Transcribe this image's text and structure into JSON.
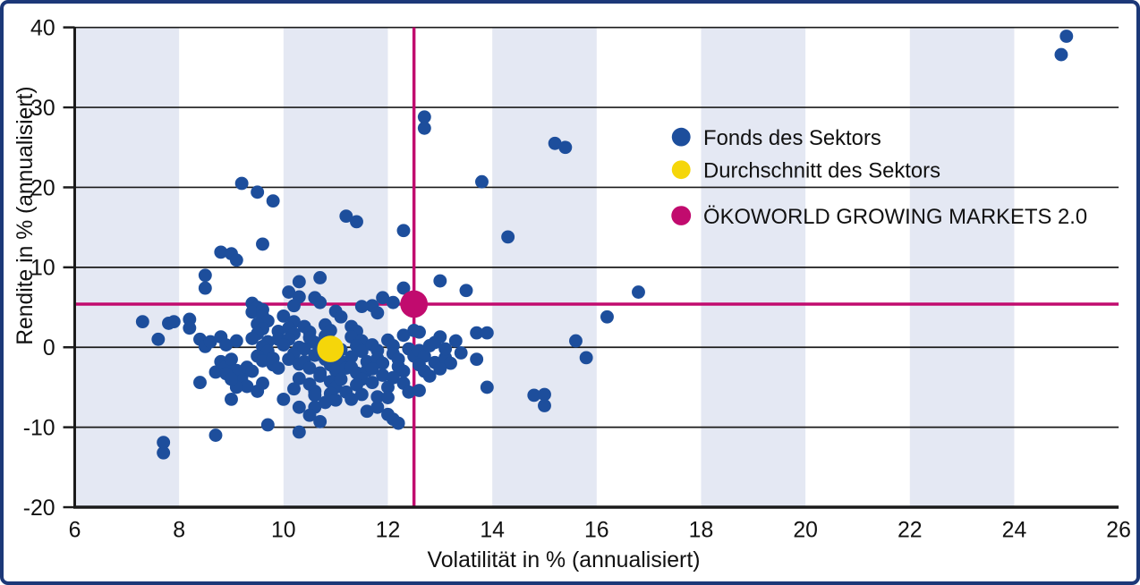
{
  "frame": {
    "border_color": "#1c3878",
    "background_color": "#ffffff"
  },
  "chart_data": {
    "type": "scatter",
    "xlabel": "Volatilität in % (annualisiert)",
    "ylabel": "Rendite in % (annualisiert)",
    "xlim": [
      6,
      26
    ],
    "ylim": [
      -20,
      40
    ],
    "xticks": [
      6,
      8,
      10,
      12,
      14,
      16,
      18,
      20,
      22,
      24,
      26
    ],
    "yticks": [
      -20,
      -10,
      0,
      10,
      20,
      30,
      40
    ],
    "grid": "horizontal",
    "gridline_color": "#1a1a1a",
    "background_bands": {
      "color": "#e4e8f3",
      "x_ranges": [
        [
          6,
          8
        ],
        [
          10,
          12
        ],
        [
          14,
          16
        ],
        [
          18,
          20
        ],
        [
          22,
          24
        ],
        [
          26,
          26.2
        ]
      ]
    },
    "crosshair": {
      "x": 12.5,
      "y": 5.4,
      "color": "#c10b6e"
    },
    "legend": {
      "position": "top-right"
    },
    "series": [
      {
        "name": "Fonds des Sektors",
        "color": "#1d4e9c",
        "marker_radius": 7.5,
        "points": [
          [
            25.0,
            38.9
          ],
          [
            24.9,
            36.6
          ],
          [
            12.7,
            28.8
          ],
          [
            12.7,
            27.4
          ],
          [
            15.2,
            25.5
          ],
          [
            15.4,
            25.0
          ],
          [
            13.8,
            20.7
          ],
          [
            9.2,
            20.5
          ],
          [
            9.5,
            19.4
          ],
          [
            9.8,
            18.3
          ],
          [
            11.2,
            16.4
          ],
          [
            11.4,
            15.7
          ],
          [
            12.3,
            14.6
          ],
          [
            14.3,
            13.8
          ],
          [
            9.6,
            12.9
          ],
          [
            8.8,
            11.9
          ],
          [
            9.0,
            11.7
          ],
          [
            9.1,
            10.9
          ],
          [
            13.0,
            8.3
          ],
          [
            12.3,
            7.4
          ],
          [
            8.5,
            9.0
          ],
          [
            8.5,
            7.4
          ],
          [
            13.5,
            7.1
          ],
          [
            16.8,
            6.9
          ],
          [
            10.3,
            8.2
          ],
          [
            10.7,
            8.7
          ],
          [
            10.1,
            6.9
          ],
          [
            10.3,
            6.3
          ],
          [
            10.6,
            6.2
          ],
          [
            10.7,
            5.6
          ],
          [
            11.9,
            6.2
          ],
          [
            11.7,
            5.2
          ],
          [
            11.5,
            5.1
          ],
          [
            10.2,
            5.2
          ],
          [
            11.8,
            4.3
          ],
          [
            12.1,
            5.6
          ],
          [
            16.2,
            3.8
          ],
          [
            7.3,
            3.2
          ],
          [
            7.8,
            3.0
          ],
          [
            7.9,
            3.2
          ],
          [
            8.2,
            3.5
          ],
          [
            8.2,
            2.4
          ],
          [
            7.6,
            1.0
          ],
          [
            8.4,
            1.0
          ],
          [
            8.5,
            0.1
          ],
          [
            8.6,
            0.7
          ],
          [
            8.8,
            1.3
          ],
          [
            8.9,
            0.3
          ],
          [
            9.1,
            0.8
          ],
          [
            13.7,
            1.8
          ],
          [
            13.9,
            1.8
          ],
          [
            13.0,
            1.3
          ],
          [
            13.3,
            0.8
          ],
          [
            15.6,
            0.8
          ],
          [
            12.6,
            1.9
          ],
          [
            12.5,
            2.1
          ],
          [
            15.8,
            -1.3
          ],
          [
            13.4,
            -0.7
          ],
          [
            13.7,
            -1.5
          ],
          [
            8.4,
            -4.4
          ],
          [
            8.7,
            -3.1
          ],
          [
            9.0,
            -6.5
          ],
          [
            9.2,
            -3.6
          ],
          [
            9.3,
            -2.5
          ],
          [
            9.7,
            -9.7
          ],
          [
            8.7,
            -11.0
          ],
          [
            10.0,
            -6.5
          ],
          [
            10.3,
            -7.5
          ],
          [
            10.3,
            -10.6
          ],
          [
            10.7,
            -9.3
          ],
          [
            10.6,
            -7.5
          ],
          [
            10.9,
            -6.4
          ],
          [
            10.5,
            -8.5
          ],
          [
            7.7,
            -11.9
          ],
          [
            7.7,
            -13.2
          ],
          [
            11.6,
            -8.0
          ],
          [
            11.8,
            -7.5
          ],
          [
            12.0,
            -8.4
          ],
          [
            12.1,
            -9.0
          ],
          [
            12.2,
            -9.5
          ],
          [
            12.6,
            -5.4
          ],
          [
            13.9,
            -5.0
          ],
          [
            14.8,
            -6.0
          ],
          [
            15.0,
            -5.9
          ],
          [
            15.0,
            -7.3
          ],
          [
            9.4,
            5.5
          ],
          [
            9.5,
            5.0
          ],
          [
            9.4,
            4.4
          ],
          [
            9.6,
            4.7
          ],
          [
            9.6,
            3.9
          ],
          [
            9.7,
            3.3
          ],
          [
            9.5,
            2.9
          ],
          [
            9.6,
            2.3
          ],
          [
            9.5,
            1.7
          ],
          [
            9.4,
            1.1
          ],
          [
            9.7,
            0.7
          ],
          [
            9.6,
            0.1
          ],
          [
            9.7,
            -0.5
          ],
          [
            9.5,
            -1.1
          ],
          [
            9.6,
            -1.7
          ],
          [
            9.8,
            -2.2
          ],
          [
            9.9,
            2.0
          ],
          [
            9.9,
            1.0
          ],
          [
            9.8,
            -1.4
          ],
          [
            9.9,
            -2.6
          ],
          [
            10.0,
            3.9
          ],
          [
            10.2,
            3.2
          ],
          [
            10.1,
            2.4
          ],
          [
            10.2,
            1.7
          ],
          [
            10.1,
            1.0
          ],
          [
            10.0,
            0.3
          ],
          [
            10.3,
            0.0
          ],
          [
            10.2,
            -0.8
          ],
          [
            10.1,
            -1.5
          ],
          [
            10.3,
            -2.1
          ],
          [
            10.4,
            2.6
          ],
          [
            10.5,
            1.9
          ],
          [
            10.5,
            1.2
          ],
          [
            10.6,
            0.6
          ],
          [
            10.4,
            -0.2
          ],
          [
            10.6,
            -1.0
          ],
          [
            10.4,
            -1.8
          ],
          [
            10.5,
            -2.6
          ],
          [
            10.7,
            -3.2
          ],
          [
            10.3,
            -3.9
          ],
          [
            10.5,
            -4.6
          ],
          [
            10.2,
            -5.2
          ],
          [
            10.8,
            2.8
          ],
          [
            10.9,
            2.1
          ],
          [
            10.8,
            1.4
          ],
          [
            10.9,
            0.7
          ],
          [
            11.0,
            0.0
          ],
          [
            10.7,
            -0.7
          ],
          [
            10.8,
            -1.5
          ],
          [
            10.9,
            -2.2
          ],
          [
            11.0,
            -1.0
          ],
          [
            11.1,
            -0.3
          ],
          [
            11.1,
            -1.8
          ],
          [
            11.0,
            -2.9
          ],
          [
            10.7,
            -3.6
          ],
          [
            10.9,
            -4.3
          ],
          [
            11.0,
            -5.0
          ],
          [
            11.2,
            -2.6
          ],
          [
            11.1,
            -4.0
          ],
          [
            10.6,
            -5.5
          ],
          [
            11.0,
            4.5
          ],
          [
            11.1,
            3.8
          ],
          [
            11.3,
            2.6
          ],
          [
            11.4,
            2.0
          ],
          [
            11.3,
            1.3
          ],
          [
            11.5,
            0.8
          ],
          [
            11.4,
            0.2
          ],
          [
            11.5,
            -0.5
          ],
          [
            11.3,
            -1.2
          ],
          [
            11.6,
            -1.8
          ],
          [
            11.3,
            -2.5
          ],
          [
            11.4,
            -3.2
          ],
          [
            11.6,
            -2.9
          ],
          [
            11.5,
            -4.0
          ],
          [
            11.4,
            -4.7
          ],
          [
            11.7,
            0.3
          ],
          [
            11.8,
            -0.4
          ],
          [
            11.8,
            -1.4
          ],
          [
            11.9,
            -2.0
          ],
          [
            11.7,
            -2.7
          ],
          [
            11.9,
            -3.5
          ],
          [
            11.7,
            -4.4
          ],
          [
            12.0,
            -5.0
          ],
          [
            12.0,
            0.9
          ],
          [
            12.1,
            0.2
          ],
          [
            12.1,
            -0.8
          ],
          [
            12.2,
            -1.5
          ],
          [
            12.2,
            -2.4
          ],
          [
            12.3,
            -3.0
          ],
          [
            12.1,
            -3.8
          ],
          [
            12.3,
            -4.5
          ],
          [
            12.4,
            -5.6
          ],
          [
            12.4,
            -0.2
          ],
          [
            12.5,
            -1.1
          ],
          [
            12.3,
            1.5
          ],
          [
            12.6,
            -0.4
          ],
          [
            12.7,
            -1.1
          ],
          [
            12.9,
            -1.9
          ],
          [
            12.6,
            -2.2
          ],
          [
            13.1,
            -1.3
          ],
          [
            12.8,
            0.2
          ],
          [
            12.9,
            0.6
          ],
          [
            13.1,
            -0.2
          ],
          [
            12.7,
            -3.0
          ],
          [
            12.8,
            -3.6
          ],
          [
            13.2,
            -2.0
          ],
          [
            13.0,
            -2.7
          ],
          [
            10.6,
            -6.0
          ],
          [
            10.9,
            -5.8
          ],
          [
            11.2,
            -5.6
          ],
          [
            11.5,
            -5.9
          ],
          [
            11.3,
            -6.5
          ],
          [
            11.0,
            -6.6
          ],
          [
            11.8,
            -6.2
          ],
          [
            12.0,
            -6.3
          ],
          [
            10.8,
            -6.9
          ],
          [
            8.8,
            -1.8
          ],
          [
            8.9,
            -2.4
          ],
          [
            9.0,
            -1.5
          ],
          [
            9.1,
            -2.9
          ],
          [
            8.9,
            -3.3
          ],
          [
            9.2,
            -4.2
          ],
          [
            9.4,
            -3.0
          ],
          [
            9.3,
            -4.9
          ],
          [
            9.5,
            -5.5
          ],
          [
            9.6,
            -4.5
          ],
          [
            9.1,
            -5.0
          ],
          [
            9.0,
            -4.0
          ]
        ]
      },
      {
        "name": "Durchschnitt des Sektors",
        "color": "#f5d60a",
        "marker_radius": 15,
        "points": [
          [
            10.9,
            -0.2
          ]
        ]
      },
      {
        "name": "ÖKOWORLD GROWING MARKETS 2.0",
        "color": "#c10b6e",
        "marker_radius": 15.5,
        "points": [
          [
            12.5,
            5.4
          ]
        ]
      }
    ]
  }
}
